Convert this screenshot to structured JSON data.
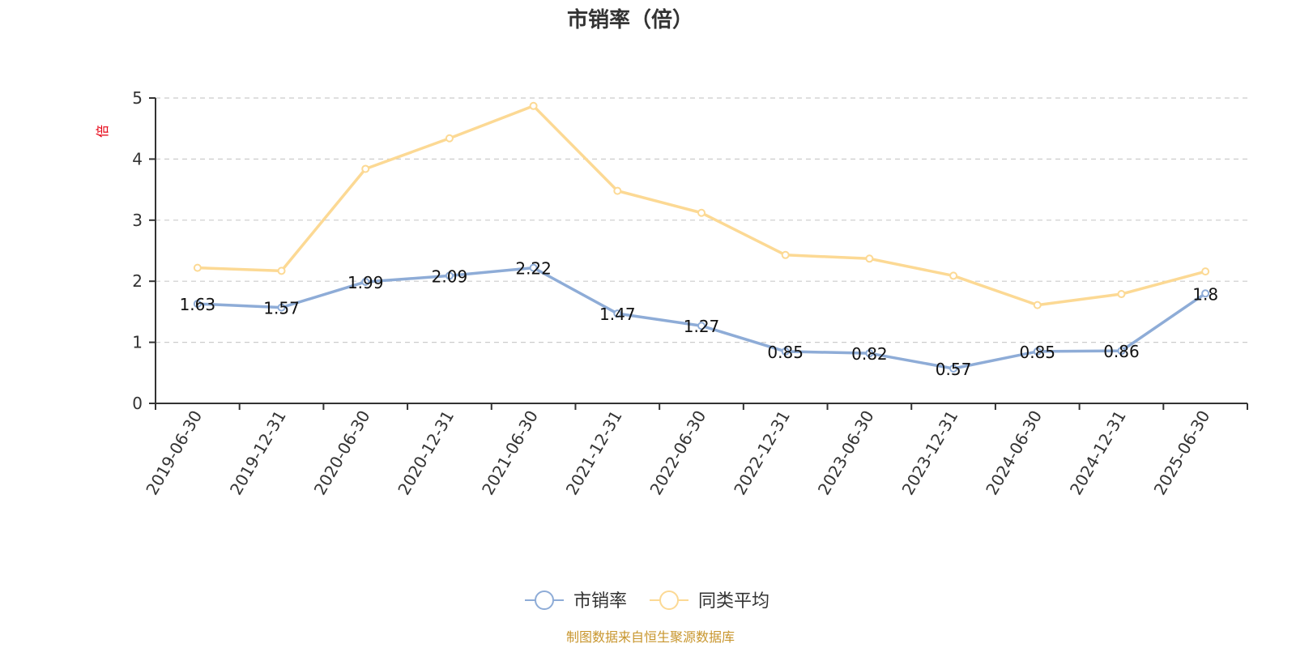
{
  "chart_data": {
    "type": "line",
    "title": "市销率（倍）",
    "ylabel": "倍",
    "ylim": [
      0,
      5
    ],
    "yticks": [
      0,
      1,
      2,
      3,
      4,
      5
    ],
    "grid": true,
    "legend_position": "bottom-center",
    "categories": [
      "2019-06-30",
      "2019-12-31",
      "2020-06-30",
      "2020-12-31",
      "2021-06-30",
      "2021-12-31",
      "2022-06-30",
      "2022-12-31",
      "2023-06-30",
      "2023-12-31",
      "2024-06-30",
      "2024-12-31",
      "2025-06-30"
    ],
    "series": [
      {
        "name": "市销率",
        "color": "#8eacd7",
        "values": [
          1.63,
          1.57,
          1.99,
          2.09,
          2.22,
          1.47,
          1.27,
          0.85,
          0.82,
          0.57,
          0.85,
          0.86,
          1.8
        ],
        "labels": [
          "1.63",
          "1.57",
          "1.99",
          "2.09",
          "2.22",
          "1.47",
          "1.27",
          "0.85",
          "0.82",
          "0.57",
          "0.85",
          "0.86",
          "1.8"
        ],
        "show_labels": true
      },
      {
        "name": "同类平均",
        "color": "#fcd994",
        "values": [
          2.22,
          2.17,
          3.84,
          4.34,
          4.87,
          3.48,
          3.12,
          2.43,
          2.37,
          2.09,
          1.61,
          1.79,
          2.16
        ],
        "show_labels": false
      }
    ],
    "source": "制图数据来自恒生聚源数据库"
  }
}
